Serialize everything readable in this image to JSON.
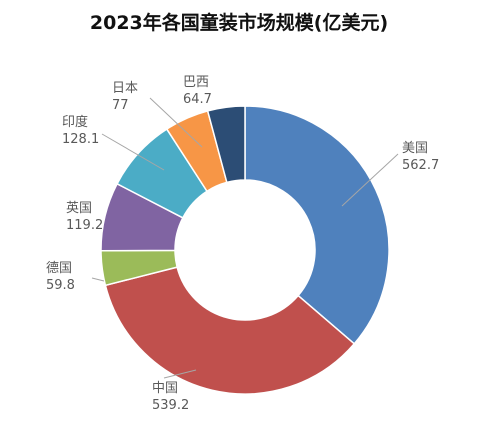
{
  "chart_data": {
    "type": "pie",
    "style": "donut",
    "title": "2023年各国童装市场规模(亿美元)",
    "legend": "none",
    "slices": [
      {
        "name": "美国",
        "value": 562.7,
        "value_label": "562.7",
        "color": "#4F81BD"
      },
      {
        "name": "中国",
        "value": 539.2,
        "value_label": "539.2",
        "color": "#C0504D"
      },
      {
        "name": "德国",
        "value": 59.8,
        "value_label": "59.8",
        "color": "#9BBB59"
      },
      {
        "name": "英国",
        "value": 119.2,
        "value_label": "119.2",
        "color": "#8064A2"
      },
      {
        "name": "印度",
        "value": 128.1,
        "value_label": "128.1",
        "color": "#4BACC6"
      },
      {
        "name": "日本",
        "value": 77,
        "value_label": "77",
        "color": "#F79646"
      },
      {
        "name": "巴西",
        "value": 64.7,
        "value_label": "64.7",
        "color": "#2C4D75"
      }
    ]
  }
}
